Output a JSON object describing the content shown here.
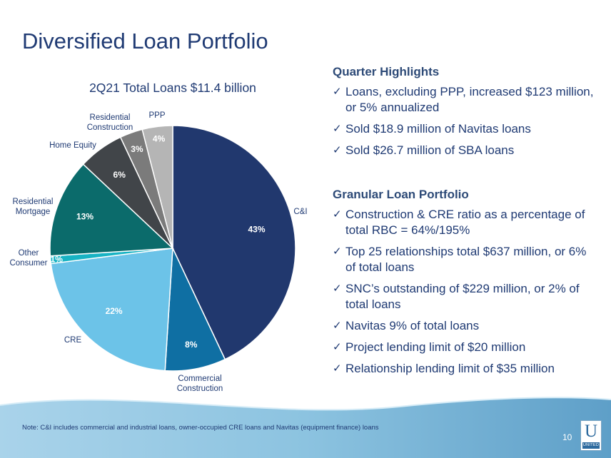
{
  "slide": {
    "title": "Diversified Loan Portfolio",
    "footnote": "Note: C&I includes commercial and industrial loans, owner-occupied CRE loans and Navitas (equipment finance) loans",
    "page_number": "10",
    "logo": {
      "glyph": "U",
      "word": "UNITED"
    }
  },
  "chart_data": {
    "type": "pie",
    "title": "2Q21 Total Loans $11.4 billion",
    "slices": [
      {
        "label": "C&I",
        "value": 43,
        "value_label": "43%",
        "color": "#21386e"
      },
      {
        "label": "Commercial Construction",
        "label_lines": [
          "Commercial",
          "Construction"
        ],
        "value": 8,
        "value_label": "8%",
        "color": "#0f6fa3"
      },
      {
        "label": "CRE",
        "value": 22,
        "value_label": "22%",
        "color": "#6cc3e8"
      },
      {
        "label": "Other Consumer",
        "label_lines": [
          "Other",
          "Consumer"
        ],
        "value": 1,
        "value_label": "1%",
        "color": "#18b3c4"
      },
      {
        "label": "Residential Mortgage",
        "label_lines": [
          "Residential",
          "Mortgage"
        ],
        "value": 13,
        "value_label": "13%",
        "color": "#0b6b6b"
      },
      {
        "label": "Home Equity",
        "value": 6,
        "value_label": "6%",
        "color": "#414549"
      },
      {
        "label": "Residential Construction",
        "label_lines": [
          "Residential",
          "Construction"
        ],
        "value": 3,
        "value_label": "3%",
        "color": "#7b7b7b"
      },
      {
        "label": "PPP",
        "value": 4,
        "value_label": "4%",
        "color": "#b5b5b5"
      }
    ]
  },
  "highlights": {
    "heading": "Quarter Highlights",
    "items": [
      "Loans, excluding PPP, increased $123 million, or 5% annualized",
      "Sold $18.9 million of Navitas loans",
      "Sold $26.7 million of SBA loans"
    ]
  },
  "granular": {
    "heading": "Granular Loan Portfolio",
    "items": [
      "Construction & CRE ratio as a percentage of total RBC = 64%/195%",
      "Top 25 relationships total $637 million, or 6% of total loans",
      "SNC’s outstanding of $229 million, or 2% of total loans",
      "Navitas 9% of total loans",
      "Project lending limit of $20 million",
      "Relationship lending limit of $35 million"
    ]
  },
  "check_glyph": "✓"
}
